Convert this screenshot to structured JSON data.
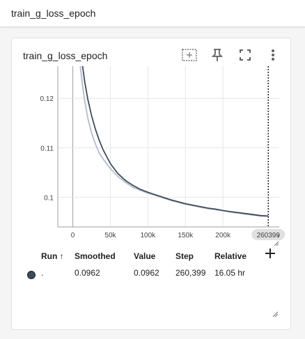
{
  "header": {
    "title": "train_g_loss_epoch"
  },
  "card": {
    "title": "train_g_loss_epoch",
    "tools": [
      "fit-domain-icon",
      "pin-icon",
      "fullscreen-icon",
      "more-vert-icon"
    ]
  },
  "chart_data": {
    "type": "line",
    "title": "train_g_loss_epoch",
    "xlabel": "",
    "ylabel": "",
    "x_ticks": [
      "0",
      "50k",
      "100k",
      "150k",
      "200k"
    ],
    "y_ticks": [
      "0.12",
      "0.11",
      "0.1"
    ],
    "xlim": [
      -20000,
      275000
    ],
    "ylim": [
      0.094,
      0.1265
    ],
    "cursor_x": 260399,
    "cursor_label": "260399",
    "grid": true,
    "series": [
      {
        "role": "smoothed",
        "color": "#3f4b5b",
        "x": [
          13000,
          16000,
          20000,
          25000,
          30000,
          35000,
          40000,
          50000,
          60000,
          70000,
          80000,
          90000,
          100000,
          110000,
          120000,
          130000,
          140000,
          150000,
          160000,
          170000,
          180000,
          190000,
          200000,
          210000,
          220000,
          230000,
          240000,
          250000,
          260399
        ],
        "y": [
          0.1265,
          0.1232,
          0.1198,
          0.1165,
          0.1138,
          0.1116,
          0.1097,
          0.1068,
          0.1048,
          0.1034,
          0.1024,
          0.1016,
          0.101,
          0.1005,
          0.1,
          0.0995,
          0.0991,
          0.0987,
          0.0984,
          0.0981,
          0.0978,
          0.0976,
          0.0973,
          0.0971,
          0.0969,
          0.0967,
          0.0965,
          0.0963,
          0.0962
        ]
      },
      {
        "role": "raw",
        "color": "#b8c1cc",
        "x": [
          10000,
          13000,
          16000,
          20000,
          25000,
          30000,
          35000,
          40000,
          50000,
          60000,
          70000,
          80000,
          90000,
          100000,
          110000,
          120000,
          130000,
          140000,
          150000,
          160000,
          170000,
          180000,
          190000,
          200000,
          210000,
          220000,
          230000,
          240000,
          250000,
          260399
        ],
        "y": [
          0.1265,
          0.1225,
          0.1194,
          0.116,
          0.113,
          0.1108,
          0.109,
          0.1078,
          0.1058,
          0.1042,
          0.103,
          0.102,
          0.1014,
          0.1008,
          0.1004,
          0.0999,
          0.0994,
          0.099,
          0.0986,
          0.0983,
          0.098,
          0.0977,
          0.0975,
          0.0973,
          0.097,
          0.0968,
          0.0966,
          0.0964,
          0.0962,
          0.0962
        ]
      }
    ]
  },
  "table": {
    "headers": {
      "run": "Run",
      "sort_arrow": "↑",
      "smoothed": "Smoothed",
      "value": "Value",
      "step": "Step",
      "relative": "Relative"
    },
    "row": {
      "run": ".",
      "smoothed": "0.0962",
      "value": "0.0962",
      "step": "260,399",
      "relative": "16.05 hr",
      "color": "#3f4b5b"
    }
  }
}
